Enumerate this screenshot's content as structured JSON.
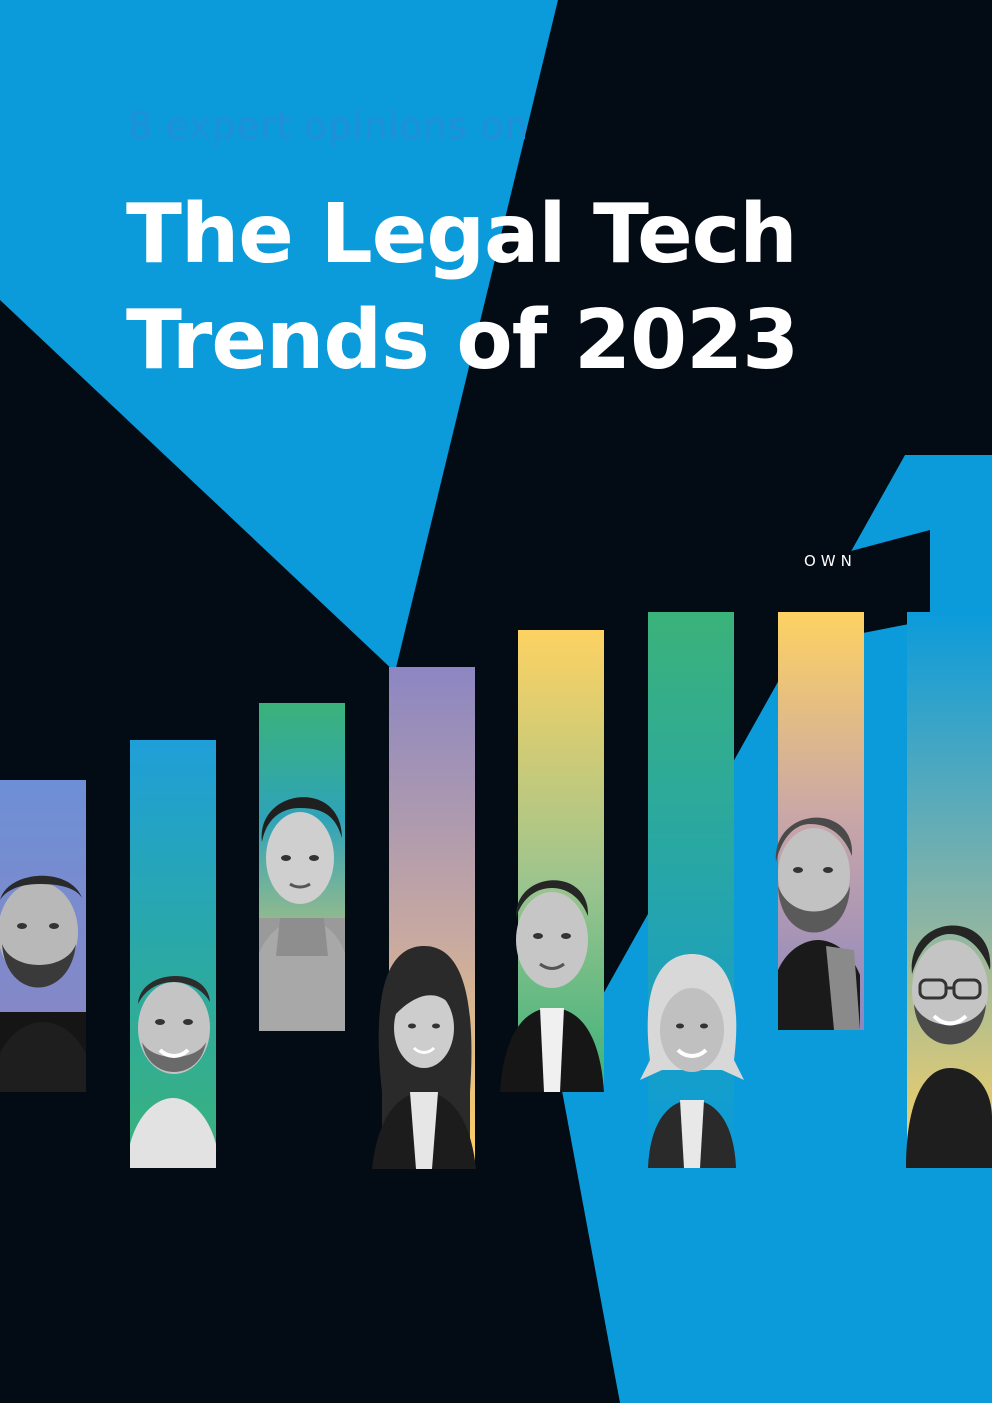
{
  "cover": {
    "kicker": "8 expert opinions on",
    "title_line_1": "The Legal Tech",
    "title_line_2": "Trends of 2023",
    "logo_text": "OWN"
  },
  "colors": {
    "blue": "#0b9bdb",
    "black": "#030b14",
    "green": "#3bb27a",
    "purple": "#8c86c2",
    "yellow": "#fdd262",
    "white": "#ffffff"
  },
  "portraits": [
    {
      "gender": "man",
      "hair": "short",
      "beard": true,
      "glasses": false,
      "top": "dark-sweater"
    },
    {
      "gender": "man",
      "hair": "short",
      "beard": true,
      "glasses": false,
      "top": "light-shirt"
    },
    {
      "gender": "man",
      "hair": "wavy",
      "beard": false,
      "glasses": false,
      "top": "turtleneck"
    },
    {
      "gender": "woman",
      "hair": "long",
      "beard": false,
      "glasses": false,
      "top": "blazer"
    },
    {
      "gender": "man",
      "hair": "short",
      "beard": false,
      "glasses": false,
      "top": "suit"
    },
    {
      "gender": "woman",
      "hair": "bob",
      "beard": false,
      "glasses": false,
      "top": "blazer"
    },
    {
      "gender": "man",
      "hair": "undercut",
      "beard": true,
      "glasses": false,
      "top": "scarf"
    },
    {
      "gender": "man",
      "hair": "short",
      "beard": true,
      "glasses": true,
      "top": "zip-sweater"
    }
  ]
}
